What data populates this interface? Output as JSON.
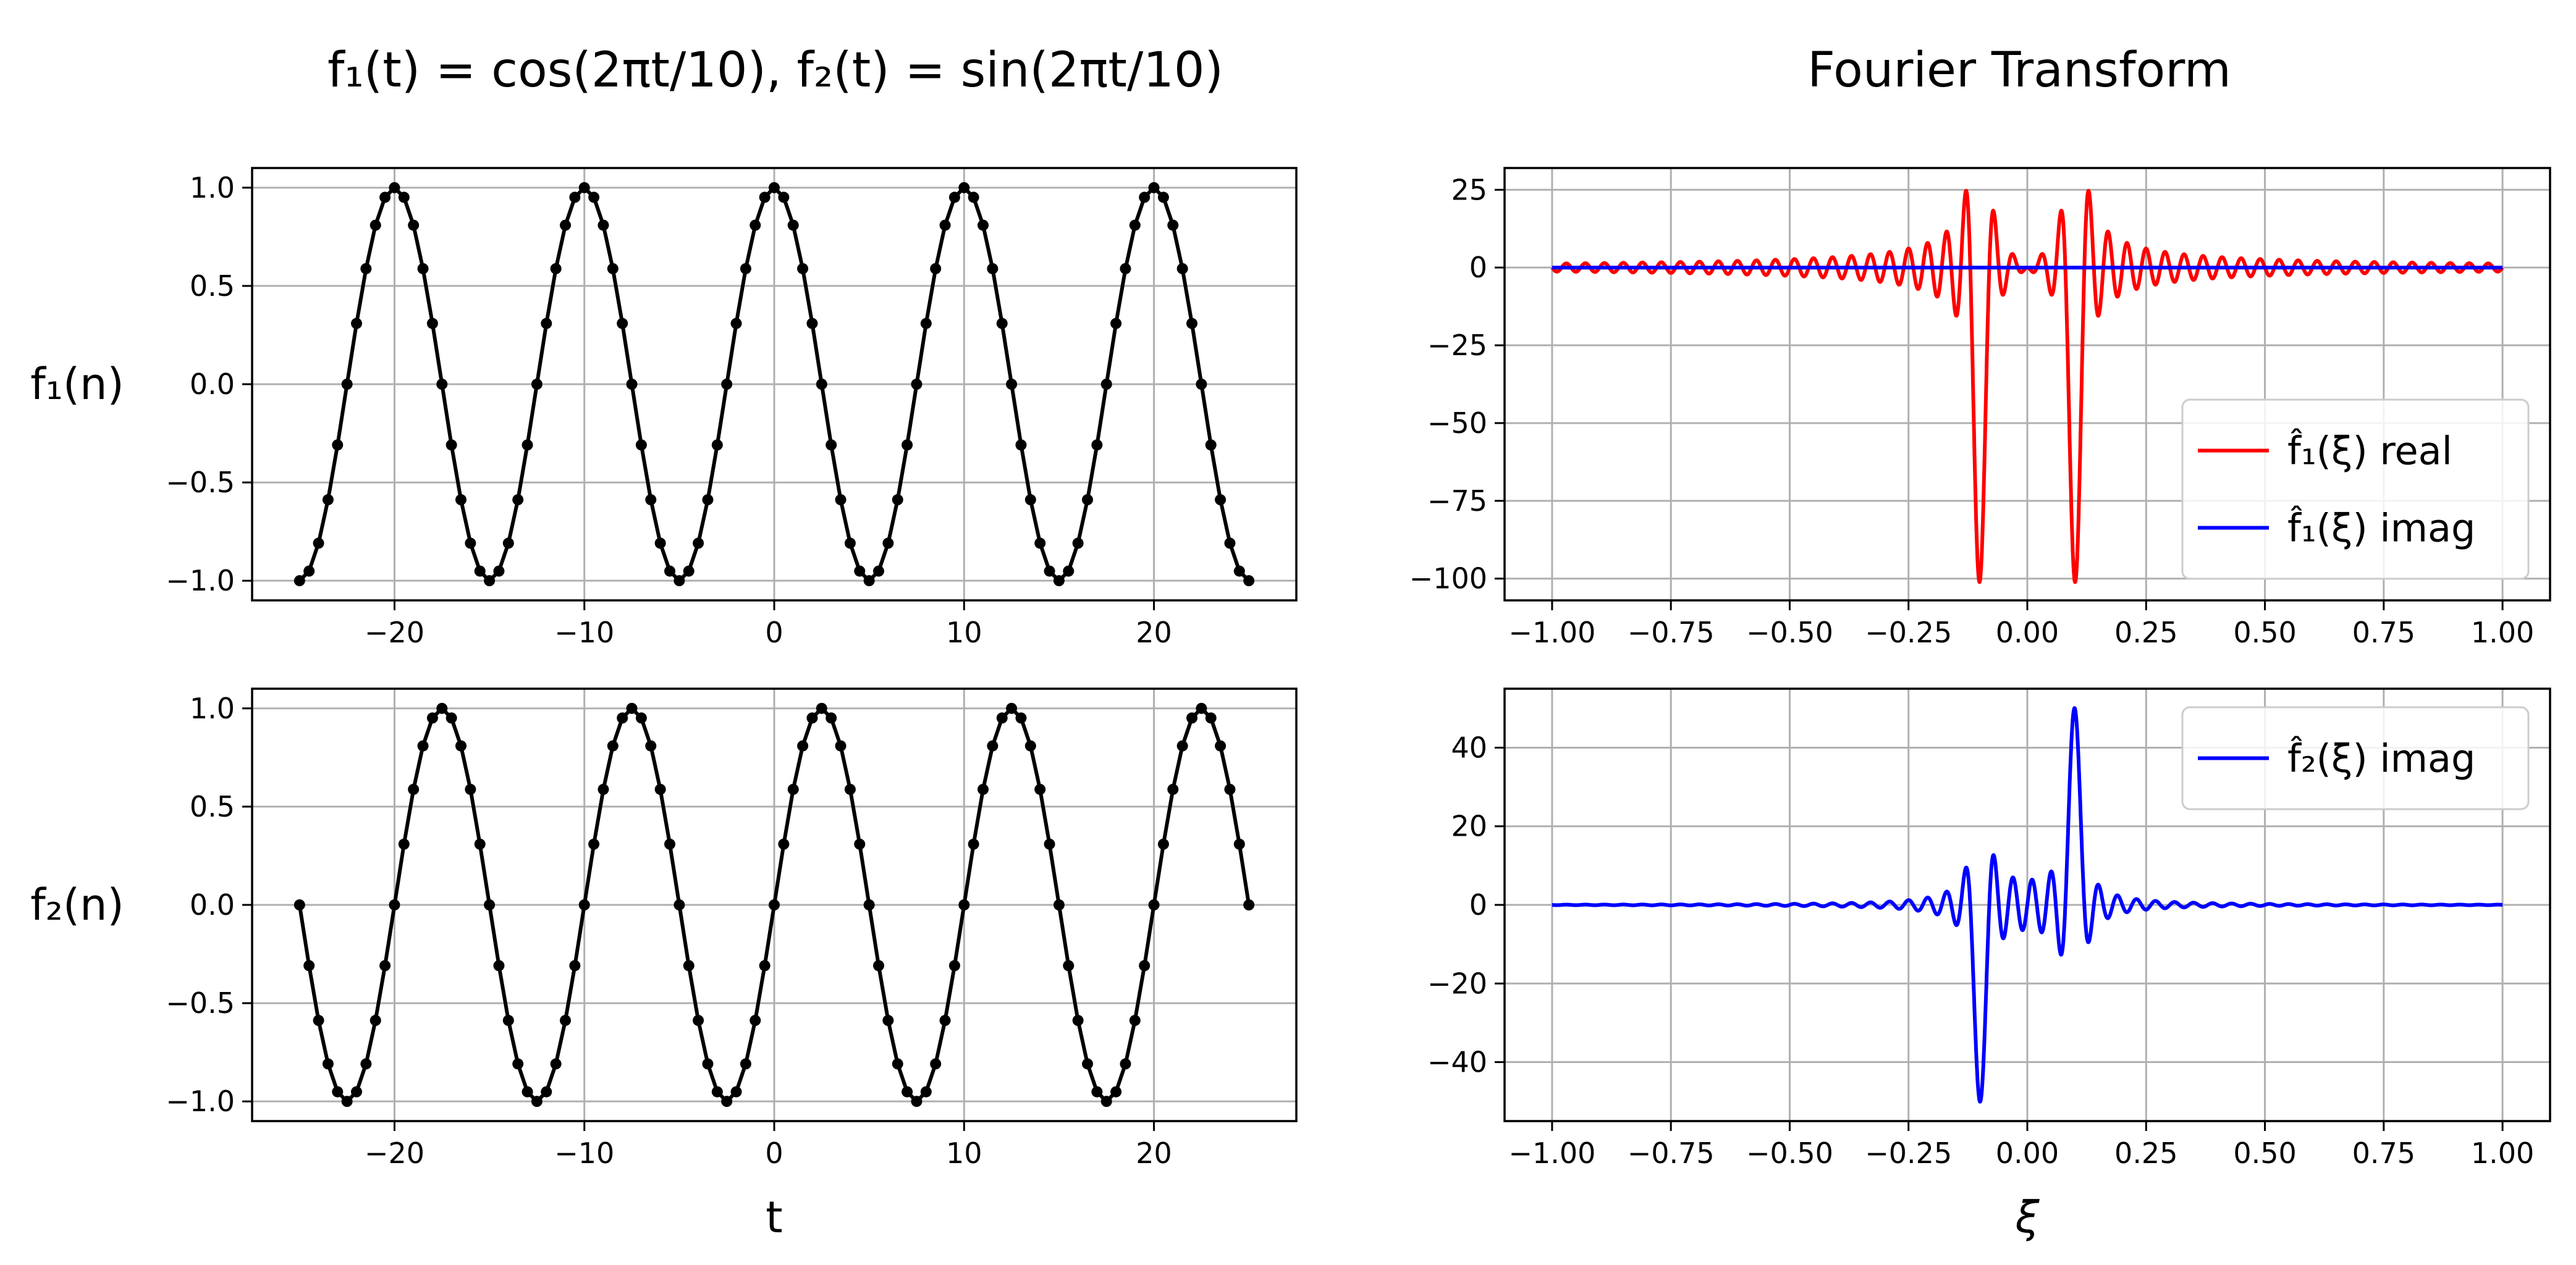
{
  "figure": {
    "left_title": "f₁(t) = cos(2πt/10), f₂(t) = sin(2πt/10)",
    "right_title": "Fourier Transform",
    "colors": {
      "f1_real": "#ff0000",
      "imag": "#0000ff",
      "time": "#000000",
      "grid": "#b0b0b0"
    }
  },
  "chart_data": [
    {
      "id": "f1-time",
      "type": "line",
      "ylabel": "f₁(n)",
      "xlabel": "",
      "xlim": [
        -27.5,
        27.5
      ],
      "ylim": [
        -1.1,
        1.1
      ],
      "xticks": [
        -20,
        -10,
        0,
        10,
        20
      ],
      "xtick_labels": [
        "−20",
        "−10",
        "0",
        "10",
        "20"
      ],
      "yticks": [
        1.0,
        0.5,
        0.0,
        -0.5,
        -1.0
      ],
      "ytick_labels": [
        "1.0",
        "0.5",
        "0.0",
        "−0.5",
        "−1.0"
      ],
      "grid": true,
      "series": [
        {
          "function": "cos(2πt/10)",
          "t_start": -25,
          "t_end": 25,
          "num_points": 101,
          "markers": true,
          "color": "#000000"
        }
      ]
    },
    {
      "id": "f2-time",
      "type": "line",
      "ylabel": "f₂(n)",
      "xlabel": "t",
      "xlim": [
        -27.5,
        27.5
      ],
      "ylim": [
        -1.1,
        1.1
      ],
      "xticks": [
        -20,
        -10,
        0,
        10,
        20
      ],
      "xtick_labels": [
        "−20",
        "−10",
        "0",
        "10",
        "20"
      ],
      "yticks": [
        1.0,
        0.5,
        0.0,
        -0.5,
        -1.0
      ],
      "ytick_labels": [
        "1.0",
        "0.5",
        "0.0",
        "−0.5",
        "−1.0"
      ],
      "grid": true,
      "series": [
        {
          "function": "sin(2πt/10)",
          "t_start": -25,
          "t_end": 25,
          "num_points": 101,
          "markers": true,
          "color": "#000000"
        }
      ]
    },
    {
      "id": "f1-fourier",
      "type": "line",
      "xlabel": "",
      "ylabel": "",
      "xlim": [
        -1.1,
        1.1
      ],
      "ylim": [
        -107,
        32
      ],
      "xticks": [
        -1.0,
        -0.75,
        -0.5,
        -0.25,
        0.0,
        0.25,
        0.5,
        0.75,
        1.0
      ],
      "xtick_labels": [
        "−1.00",
        "−0.75",
        "−0.50",
        "−0.25",
        "0.00",
        "0.25",
        "0.50",
        "0.75",
        "1.00"
      ],
      "yticks": [
        25,
        0,
        -25,
        -50,
        -75,
        -100
      ],
      "ytick_labels": [
        "25",
        "0",
        "−25",
        "−50",
        "−75",
        "−100"
      ],
      "grid": true,
      "legend_position": "lower-right",
      "series": [
        {
          "name": "f̂₁(ξ) real",
          "transform": "real",
          "color": "#ff0000",
          "peaks_at": [
            -0.1,
            0.1
          ],
          "peak_value": -101
        },
        {
          "name": "f̂₁(ξ) imag",
          "transform": "zero",
          "color": "#0000ff"
        }
      ]
    },
    {
      "id": "f2-fourier",
      "type": "line",
      "xlabel": "ξ",
      "ylabel": "",
      "xlim": [
        -1.1,
        1.1
      ],
      "ylim": [
        -55,
        55
      ],
      "xticks": [
        -1.0,
        -0.75,
        -0.5,
        -0.25,
        0.0,
        0.25,
        0.5,
        0.75,
        1.0
      ],
      "xtick_labels": [
        "−1.00",
        "−0.75",
        "−0.50",
        "−0.25",
        "0.00",
        "0.25",
        "0.50",
        "0.75",
        "1.00"
      ],
      "yticks": [
        40,
        20,
        0,
        -20,
        -40
      ],
      "ytick_labels": [
        "40",
        "20",
        "0",
        "−20",
        "−40"
      ],
      "grid": true,
      "legend_position": "upper-right",
      "series": [
        {
          "name": "f̂₂(ξ) imag",
          "transform": "imag",
          "color": "#0000ff",
          "peaks_at": [
            -0.1,
            0.1
          ],
          "peak_value": 50
        }
      ]
    }
  ]
}
